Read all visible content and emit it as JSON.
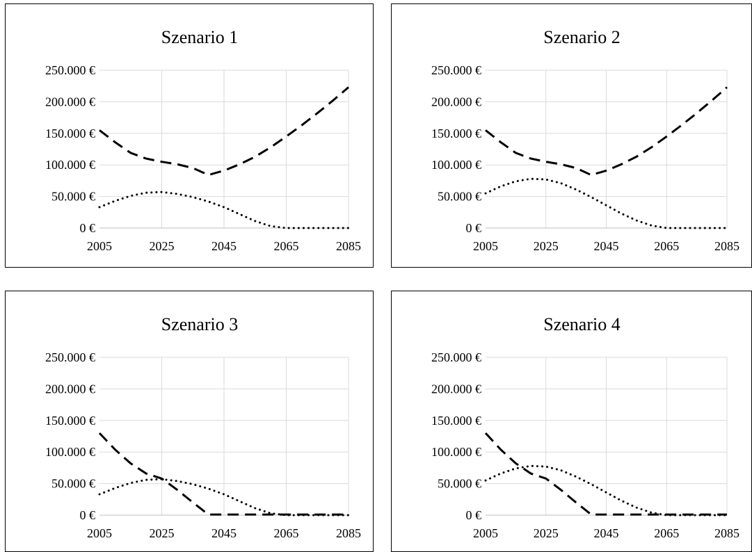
{
  "chart_data": [
    {
      "type": "line",
      "title": "Szenario 1",
      "x": [
        2005,
        2010,
        2015,
        2020,
        2025,
        2030,
        2035,
        2040,
        2045,
        2050,
        2055,
        2060,
        2065,
        2070,
        2075,
        2080,
        2085
      ],
      "xticks": [
        "2005",
        "2025",
        "2045",
        "2065",
        "2085"
      ],
      "yticks": [
        "0 €",
        "50.000 €",
        "100.000 €",
        "150.000 €",
        "200.000 €",
        "250.000 €"
      ],
      "ylim": [
        0,
        250000
      ],
      "xlim": [
        2005,
        2085
      ],
      "grid": true,
      "series": [
        {
          "style": "dashed",
          "values": [
            155000,
            136000,
            119000,
            110000,
            105000,
            101000,
            95000,
            84000,
            91000,
            101000,
            113000,
            128000,
            145000,
            163000,
            182000,
            202000,
            223000
          ]
        },
        {
          "style": "dotted",
          "values": [
            33000,
            43000,
            51000,
            56000,
            57000,
            54000,
            49000,
            42000,
            33000,
            22000,
            11000,
            3000,
            0,
            0,
            0,
            0,
            0
          ]
        }
      ]
    },
    {
      "type": "line",
      "title": "Szenario 2",
      "x": [
        2005,
        2010,
        2015,
        2020,
        2025,
        2030,
        2035,
        2040,
        2045,
        2050,
        2055,
        2060,
        2065,
        2070,
        2075,
        2080,
        2085
      ],
      "xticks": [
        "2005",
        "2025",
        "2045",
        "2065",
        "2085"
      ],
      "yticks": [
        "0 €",
        "50.000 €",
        "100.000 €",
        "150.000 €",
        "200.000 €",
        "250.000 €"
      ],
      "ylim": [
        0,
        250000
      ],
      "xlim": [
        2005,
        2085
      ],
      "grid": true,
      "series": [
        {
          "style": "dashed",
          "values": [
            155000,
            136000,
            119000,
            110000,
            105000,
            101000,
            95000,
            84000,
            91000,
            101000,
            113000,
            128000,
            145000,
            163000,
            182000,
            202000,
            223000
          ]
        },
        {
          "style": "dotted",
          "values": [
            55000,
            66000,
            74000,
            78000,
            77000,
            71000,
            61000,
            49000,
            36000,
            23000,
            12000,
            4000,
            0,
            0,
            0,
            0,
            0
          ]
        }
      ]
    },
    {
      "type": "line",
      "title": "Szenario 3",
      "x": [
        2005,
        2010,
        2015,
        2020,
        2025,
        2030,
        2035,
        2040,
        2045,
        2050,
        2055,
        2060,
        2065,
        2070,
        2075,
        2080,
        2085
      ],
      "xticks": [
        "2005",
        "2025",
        "2045",
        "2065",
        "2085"
      ],
      "yticks": [
        "0 €",
        "50.000 €",
        "100.000 €",
        "150.000 €",
        "200.000 €",
        "250.000 €"
      ],
      "ylim": [
        0,
        250000
      ],
      "xlim": [
        2005,
        2085
      ],
      "grid": true,
      "series": [
        {
          "style": "dashed",
          "values": [
            130000,
            104000,
            82000,
            66000,
            58000,
            40000,
            20000,
            1000,
            1000,
            1000,
            1000,
            1000,
            1000,
            1000,
            1000,
            1000,
            1000
          ]
        },
        {
          "style": "dotted",
          "values": [
            33000,
            43000,
            51000,
            56000,
            57000,
            54000,
            49000,
            42000,
            33000,
            22000,
            11000,
            3000,
            0,
            0,
            0,
            0,
            0
          ]
        }
      ]
    },
    {
      "type": "line",
      "title": "Szenario 4",
      "x": [
        2005,
        2010,
        2015,
        2020,
        2025,
        2030,
        2035,
        2040,
        2045,
        2050,
        2055,
        2060,
        2065,
        2070,
        2075,
        2080,
        2085
      ],
      "xticks": [
        "2005",
        "2025",
        "2045",
        "2065",
        "2085"
      ],
      "yticks": [
        "0 €",
        "50.000 €",
        "100.000 €",
        "150.000 €",
        "200.000 €",
        "250.000 €"
      ],
      "ylim": [
        0,
        250000
      ],
      "xlim": [
        2005,
        2085
      ],
      "grid": true,
      "series": [
        {
          "style": "dashed",
          "values": [
            130000,
            104000,
            82000,
            66000,
            58000,
            40000,
            20000,
            1000,
            1000,
            1000,
            1000,
            1000,
            1000,
            1000,
            1000,
            1000,
            1000
          ]
        },
        {
          "style": "dotted",
          "values": [
            55000,
            66000,
            74000,
            78000,
            77000,
            71000,
            61000,
            49000,
            36000,
            23000,
            12000,
            4000,
            0,
            0,
            0,
            0,
            0
          ]
        }
      ]
    }
  ]
}
